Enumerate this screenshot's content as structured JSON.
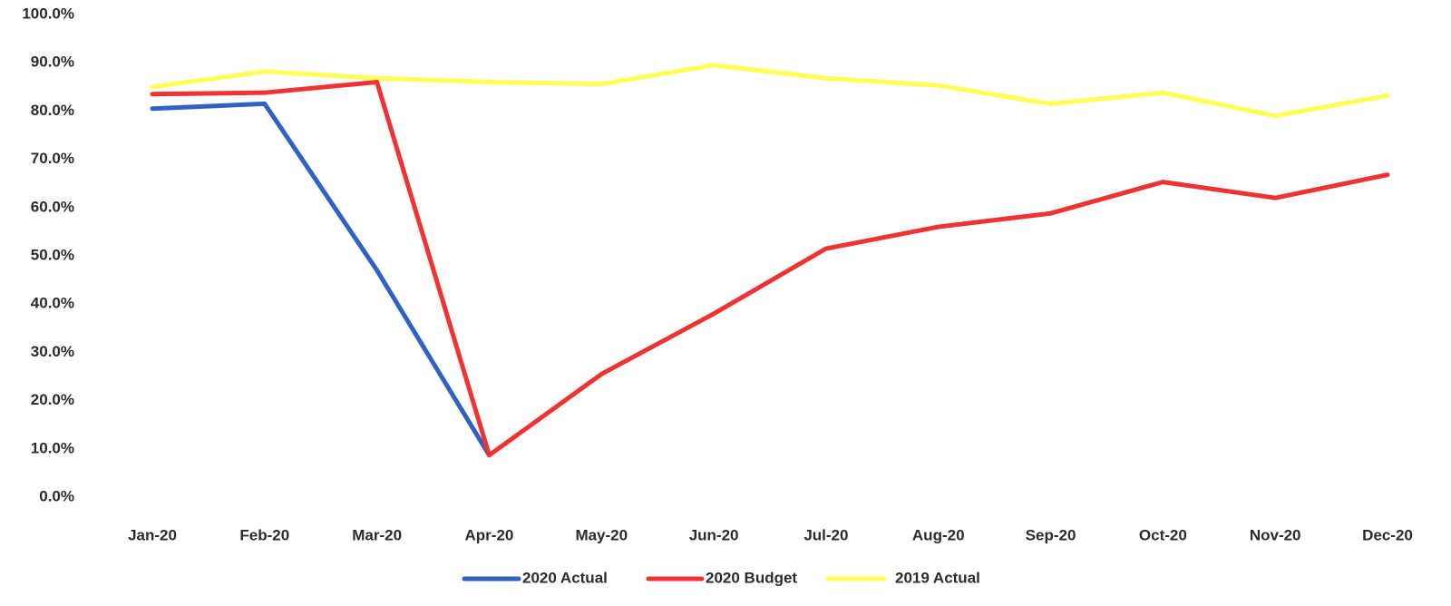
{
  "chart_data": {
    "type": "line",
    "categories": [
      "Jan-20",
      "Feb-20",
      "Mar-20",
      "Apr-20",
      "May-20",
      "Jun-20",
      "Jul-20",
      "Aug-20",
      "Sep-20",
      "Oct-20",
      "Nov-20",
      "Dec-20"
    ],
    "ylim": [
      0,
      100
    ],
    "yticks": [
      "0.0%",
      "10.0%",
      "20.0%",
      "30.0%",
      "40.0%",
      "50.0%",
      "60.0%",
      "70.0%",
      "80.0%",
      "90.0%",
      "100.0%"
    ],
    "grid": false,
    "legend_position": "bottom",
    "series": [
      {
        "name": "2020 Actual",
        "color": "#2f62c4",
        "values": [
          80.5,
          81.5,
          47.0,
          8.7,
          null,
          null,
          null,
          null,
          null,
          null,
          null,
          null
        ]
      },
      {
        "name": "2020 Budget",
        "color": "#f03232",
        "values": [
          83.5,
          83.8,
          86.0,
          8.7,
          25.5,
          38.0,
          51.5,
          56.0,
          58.8,
          65.3,
          62.0,
          66.8
        ]
      },
      {
        "name": "2019 Actual",
        "color": "#ffff55",
        "values": [
          85.0,
          88.2,
          86.8,
          86.0,
          85.6,
          89.5,
          86.8,
          85.3,
          81.5,
          83.8,
          79.0,
          83.2
        ]
      }
    ]
  }
}
